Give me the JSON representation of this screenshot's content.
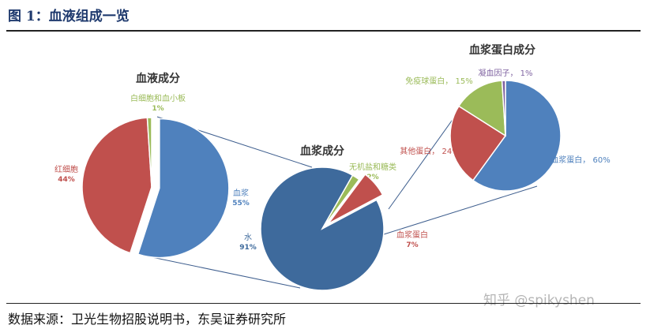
{
  "figure_title": "图 1：血液组成一览",
  "source": "数据来源：卫光生物招股说明书，东吴证券研究所",
  "watermark": "知乎 @spikyshen",
  "chart_data": [
    {
      "type": "pie",
      "title": "血液成分",
      "slices": [
        {
          "label": "血浆",
          "value": 55,
          "pct_text": "55%",
          "color": "#4f81bd"
        },
        {
          "label": "红细胞",
          "value": 44,
          "pct_text": "44%",
          "color": "#c0504d"
        },
        {
          "label": "白细胞和血小板",
          "value": 1,
          "pct_text": "1%",
          "color": "#9bbb59"
        }
      ]
    },
    {
      "type": "pie",
      "title": "血浆成分",
      "slices": [
        {
          "label": "水",
          "value": 91,
          "pct_text": "91%",
          "color": "#3e6a9c"
        },
        {
          "label": "无机盐和糖类",
          "value": 2,
          "pct_text": "2%",
          "color": "#9bbb59"
        },
        {
          "label": "血浆蛋白",
          "value": 7,
          "pct_text": "7%",
          "color": "#c0504d"
        }
      ]
    },
    {
      "type": "pie",
      "title": "血浆蛋白成分",
      "slices": [
        {
          "label": "血浆蛋白，",
          "value": 60,
          "pct_text": "60%",
          "color": "#4f81bd"
        },
        {
          "label": "其他蛋白，",
          "value": 24,
          "pct_text": "24%",
          "color": "#c0504d"
        },
        {
          "label": "免疫球蛋白，",
          "value": 15,
          "pct_text": "15%",
          "color": "#9bbb59"
        },
        {
          "label": "凝血因子，",
          "value": 1,
          "pct_text": "1%",
          "color": "#8064a2"
        }
      ]
    }
  ]
}
